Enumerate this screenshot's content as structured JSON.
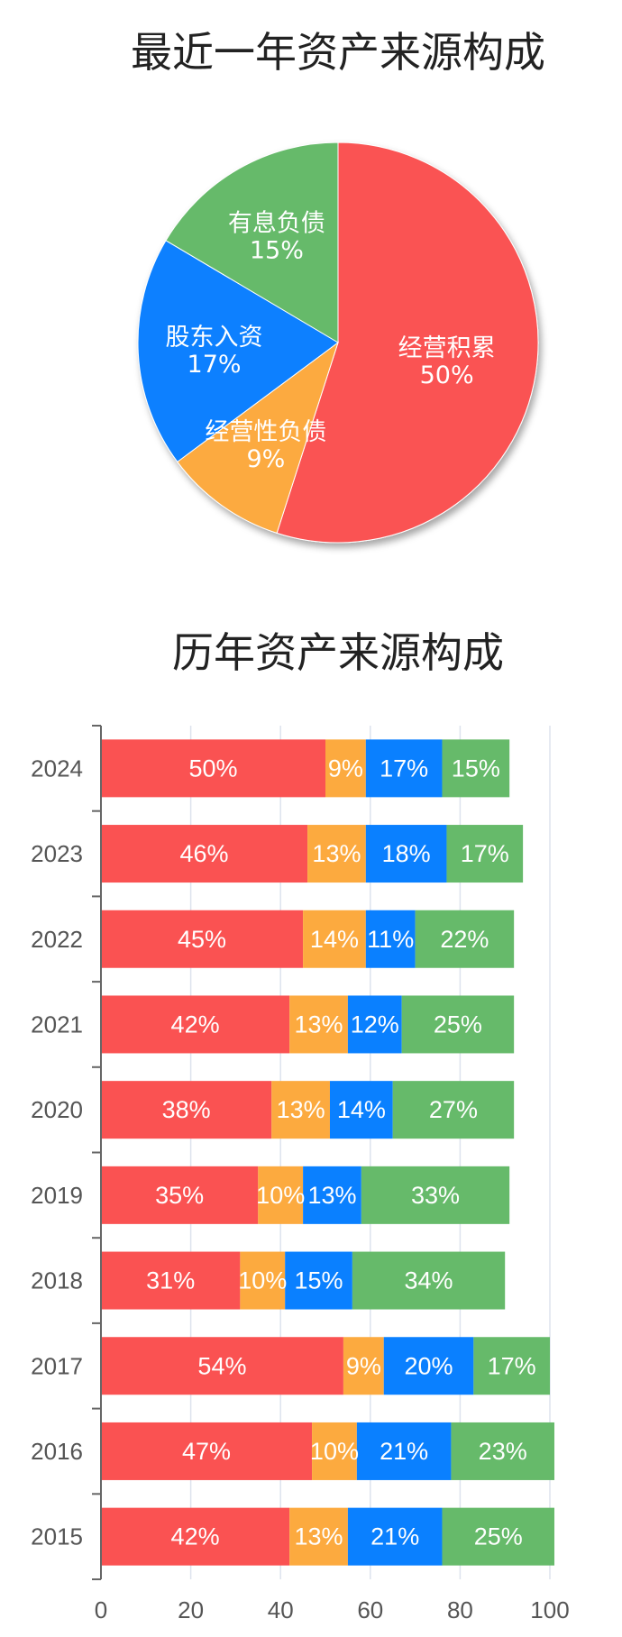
{
  "pie_title": "最近一年资产来源构成",
  "bar_title": "历年资产来源构成",
  "colors": {
    "经营积累": "#fa5252",
    "经营性负债": "#fcaa3f",
    "股东入资": "#0a80ff",
    "有息负债": "#66ba6a"
  },
  "chart_data": [
    {
      "type": "pie",
      "title": "最近一年资产来源构成",
      "slices": [
        {
          "label": "经营积累",
          "value": 50,
          "text": "50%"
        },
        {
          "label": "经营性负债",
          "value": 9,
          "text": "9%"
        },
        {
          "label": "股东入资",
          "value": 17,
          "text": "17%"
        },
        {
          "label": "有息负债",
          "value": 15,
          "text": "15%"
        }
      ]
    },
    {
      "type": "bar",
      "orientation": "horizontal",
      "stacked": true,
      "title": "历年资产来源构成",
      "categories": [
        "2024",
        "2023",
        "2022",
        "2021",
        "2020",
        "2019",
        "2018",
        "2017",
        "2016",
        "2015"
      ],
      "series": [
        {
          "color_key": "经营积累",
          "values": [
            50,
            46,
            45,
            42,
            38,
            35,
            31,
            54,
            47,
            42
          ]
        },
        {
          "color_key": "经营性负债",
          "values": [
            9,
            13,
            14,
            13,
            13,
            10,
            10,
            9,
            10,
            13
          ]
        },
        {
          "color_key": "股东入资",
          "values": [
            17,
            18,
            11,
            12,
            14,
            13,
            15,
            20,
            21,
            21
          ]
        },
        {
          "color_key": "有息负债",
          "values": [
            15,
            17,
            22,
            25,
            27,
            33,
            34,
            17,
            23,
            25
          ]
        }
      ],
      "xlim": [
        0,
        100
      ],
      "xticks": [
        0,
        20,
        40,
        60,
        80,
        100
      ],
      "grid": true
    }
  ]
}
